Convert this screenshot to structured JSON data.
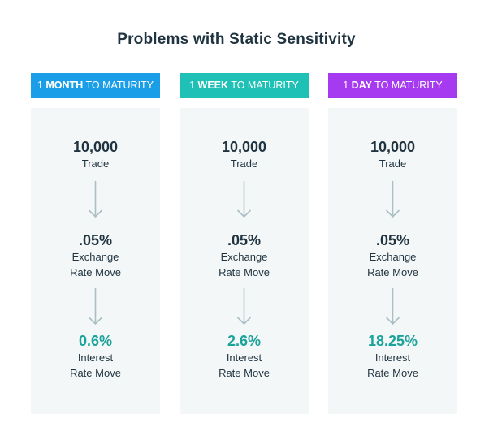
{
  "title": "Problems with Static Sensitivity",
  "columns": [
    {
      "header_num": "1",
      "header_unit": "MONTH",
      "header_suffix": "TO MATURITY",
      "header_color": "#1a9ee8",
      "trade_value": "10,000",
      "trade_label": "Trade",
      "exchange_value": ".05%",
      "exchange_label_1": "Exchange",
      "exchange_label_2": "Rate Move",
      "interest_value": "0.6%",
      "interest_label_1": "Interest",
      "interest_label_2": "Rate Move"
    },
    {
      "header_num": "1",
      "header_unit": "WEEK",
      "header_suffix": "TO MATURITY",
      "header_color": "#1fc0b5",
      "trade_value": "10,000",
      "trade_label": "Trade",
      "exchange_value": ".05%",
      "exchange_label_1": "Exchange",
      "exchange_label_2": "Rate Move",
      "interest_value": "2.6%",
      "interest_label_1": "Interest",
      "interest_label_2": "Rate Move"
    },
    {
      "header_num": "1",
      "header_unit": "DAY",
      "header_suffix": "TO MATURITY",
      "header_color": "#a63af0",
      "trade_value": "10,000",
      "trade_label": "Trade",
      "exchange_value": ".05%",
      "exchange_label_1": "Exchange",
      "exchange_label_2": "Rate Move",
      "interest_value": "18.25%",
      "interest_label_1": "Interest",
      "interest_label_2": "Rate Move"
    }
  ],
  "colors": {
    "accent_value": "#1aa39a",
    "arrow": "#a9bfc4",
    "panel": "#f4f7f7",
    "text": "#1f3340"
  },
  "icons": {
    "flow_arrow": "arrow-down-icon"
  }
}
